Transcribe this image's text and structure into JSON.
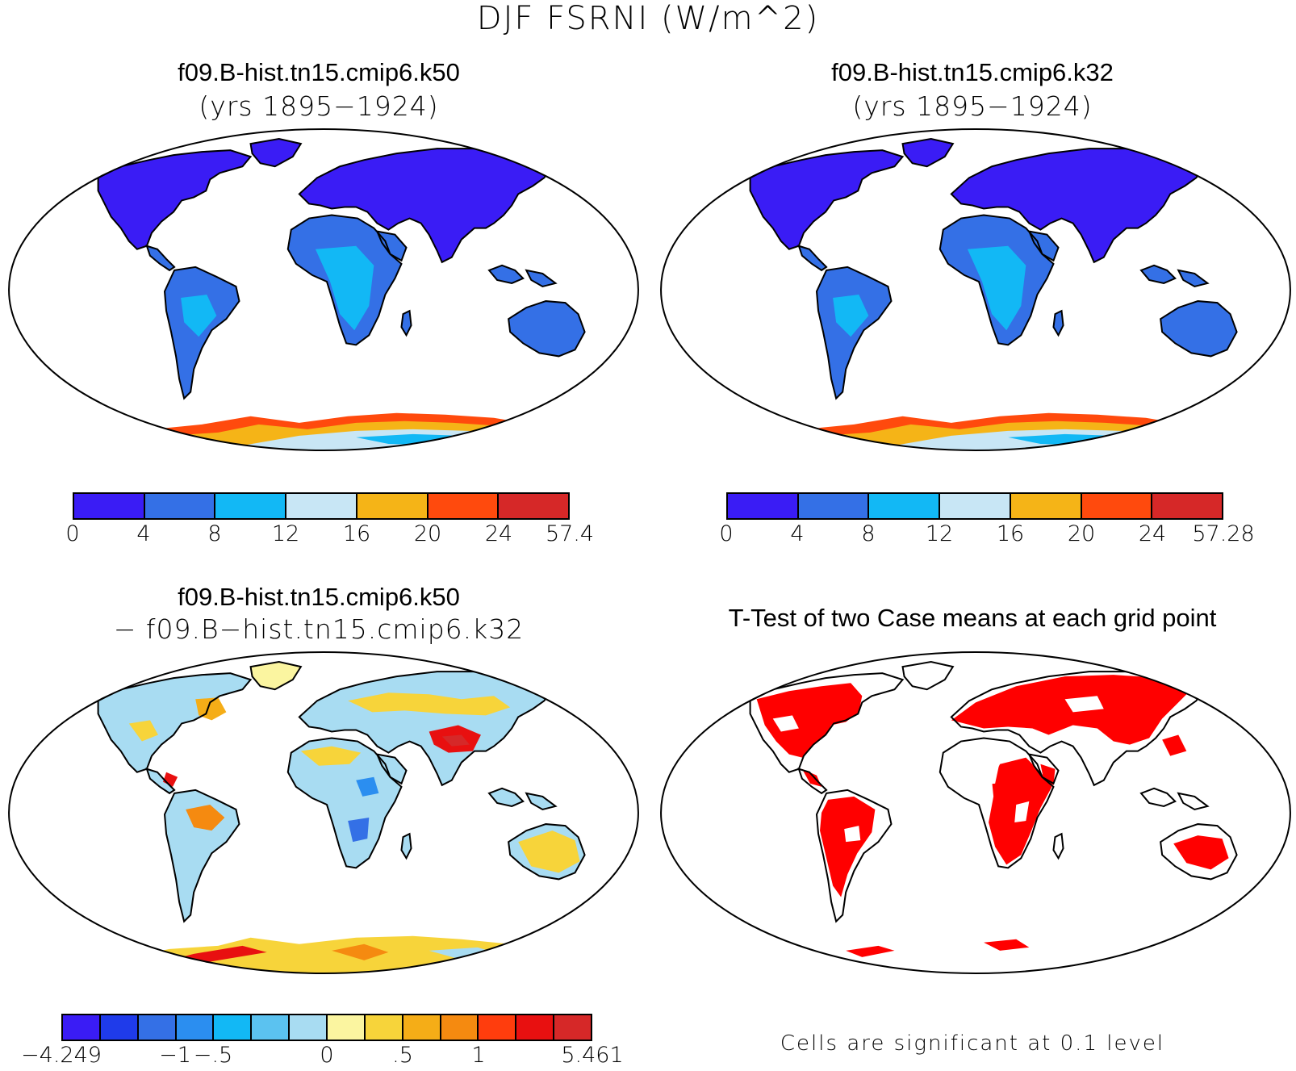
{
  "figure_title": "DJF FSRNI (W/m^2)",
  "panels": {
    "top_left": {
      "title": "f09.B-hist.tn15.cmip6.k50",
      "subtitle": "(yrs 1895−1924)",
      "colorbar": {
        "colors": [
          "#3a1cf5",
          "#3470e6",
          "#12b8f5",
          "#c8e6f5",
          "#f5b417",
          "#ff4a0d",
          "#d62828"
        ],
        "tick_labels": [
          "0",
          "4",
          "8",
          "12",
          "16",
          "20",
          "24",
          "57.4"
        ]
      }
    },
    "top_right": {
      "title": "f09.B-hist.tn15.cmip6.k32",
      "subtitle": "(yrs 1895−1924)",
      "colorbar": {
        "colors": [
          "#3a1cf5",
          "#3470e6",
          "#12b8f5",
          "#c8e6f5",
          "#f5b417",
          "#ff4a0d",
          "#d62828"
        ],
        "tick_labels": [
          "0",
          "4",
          "8",
          "12",
          "16",
          "20",
          "24",
          "57.28"
        ]
      }
    },
    "bottom_left": {
      "title": "f09.B-hist.tn15.cmip6.k50",
      "subtitle": "− f09.B−hist.tn15.cmip6.k32",
      "colorbar": {
        "colors": [
          "#3a1cf5",
          "#1f3bea",
          "#3470e6",
          "#2b8ef0",
          "#12b8f5",
          "#5bc2f0",
          "#a8dcf2",
          "#fbf5a0",
          "#f7d43a",
          "#f5ad17",
          "#f58a10",
          "#ff3d0d",
          "#e81010",
          "#d62828"
        ],
        "tick_labels": [
          "−4.249",
          "−1",
          "−.5",
          "0",
          ".5",
          "1",
          "5.461"
        ]
      }
    },
    "bottom_right": {
      "title": "T-Test of two Case means at each grid point",
      "note": "Cells are significant at 0.1 level",
      "significant_color": "#ff0000"
    }
  },
  "map_colors": {
    "northern_land": "#3a1cf5",
    "tropical_land": "#3470e6",
    "africa_interior": "#12b8f5",
    "antarctic_interior": "#c8e6f5",
    "antarctic_coast": "#f5b417",
    "antarctic_edge": "#ff4a0d",
    "diff_base": "#a8dcf2",
    "diff_warm": "#f7d43a",
    "diff_hot": "#e81010"
  }
}
